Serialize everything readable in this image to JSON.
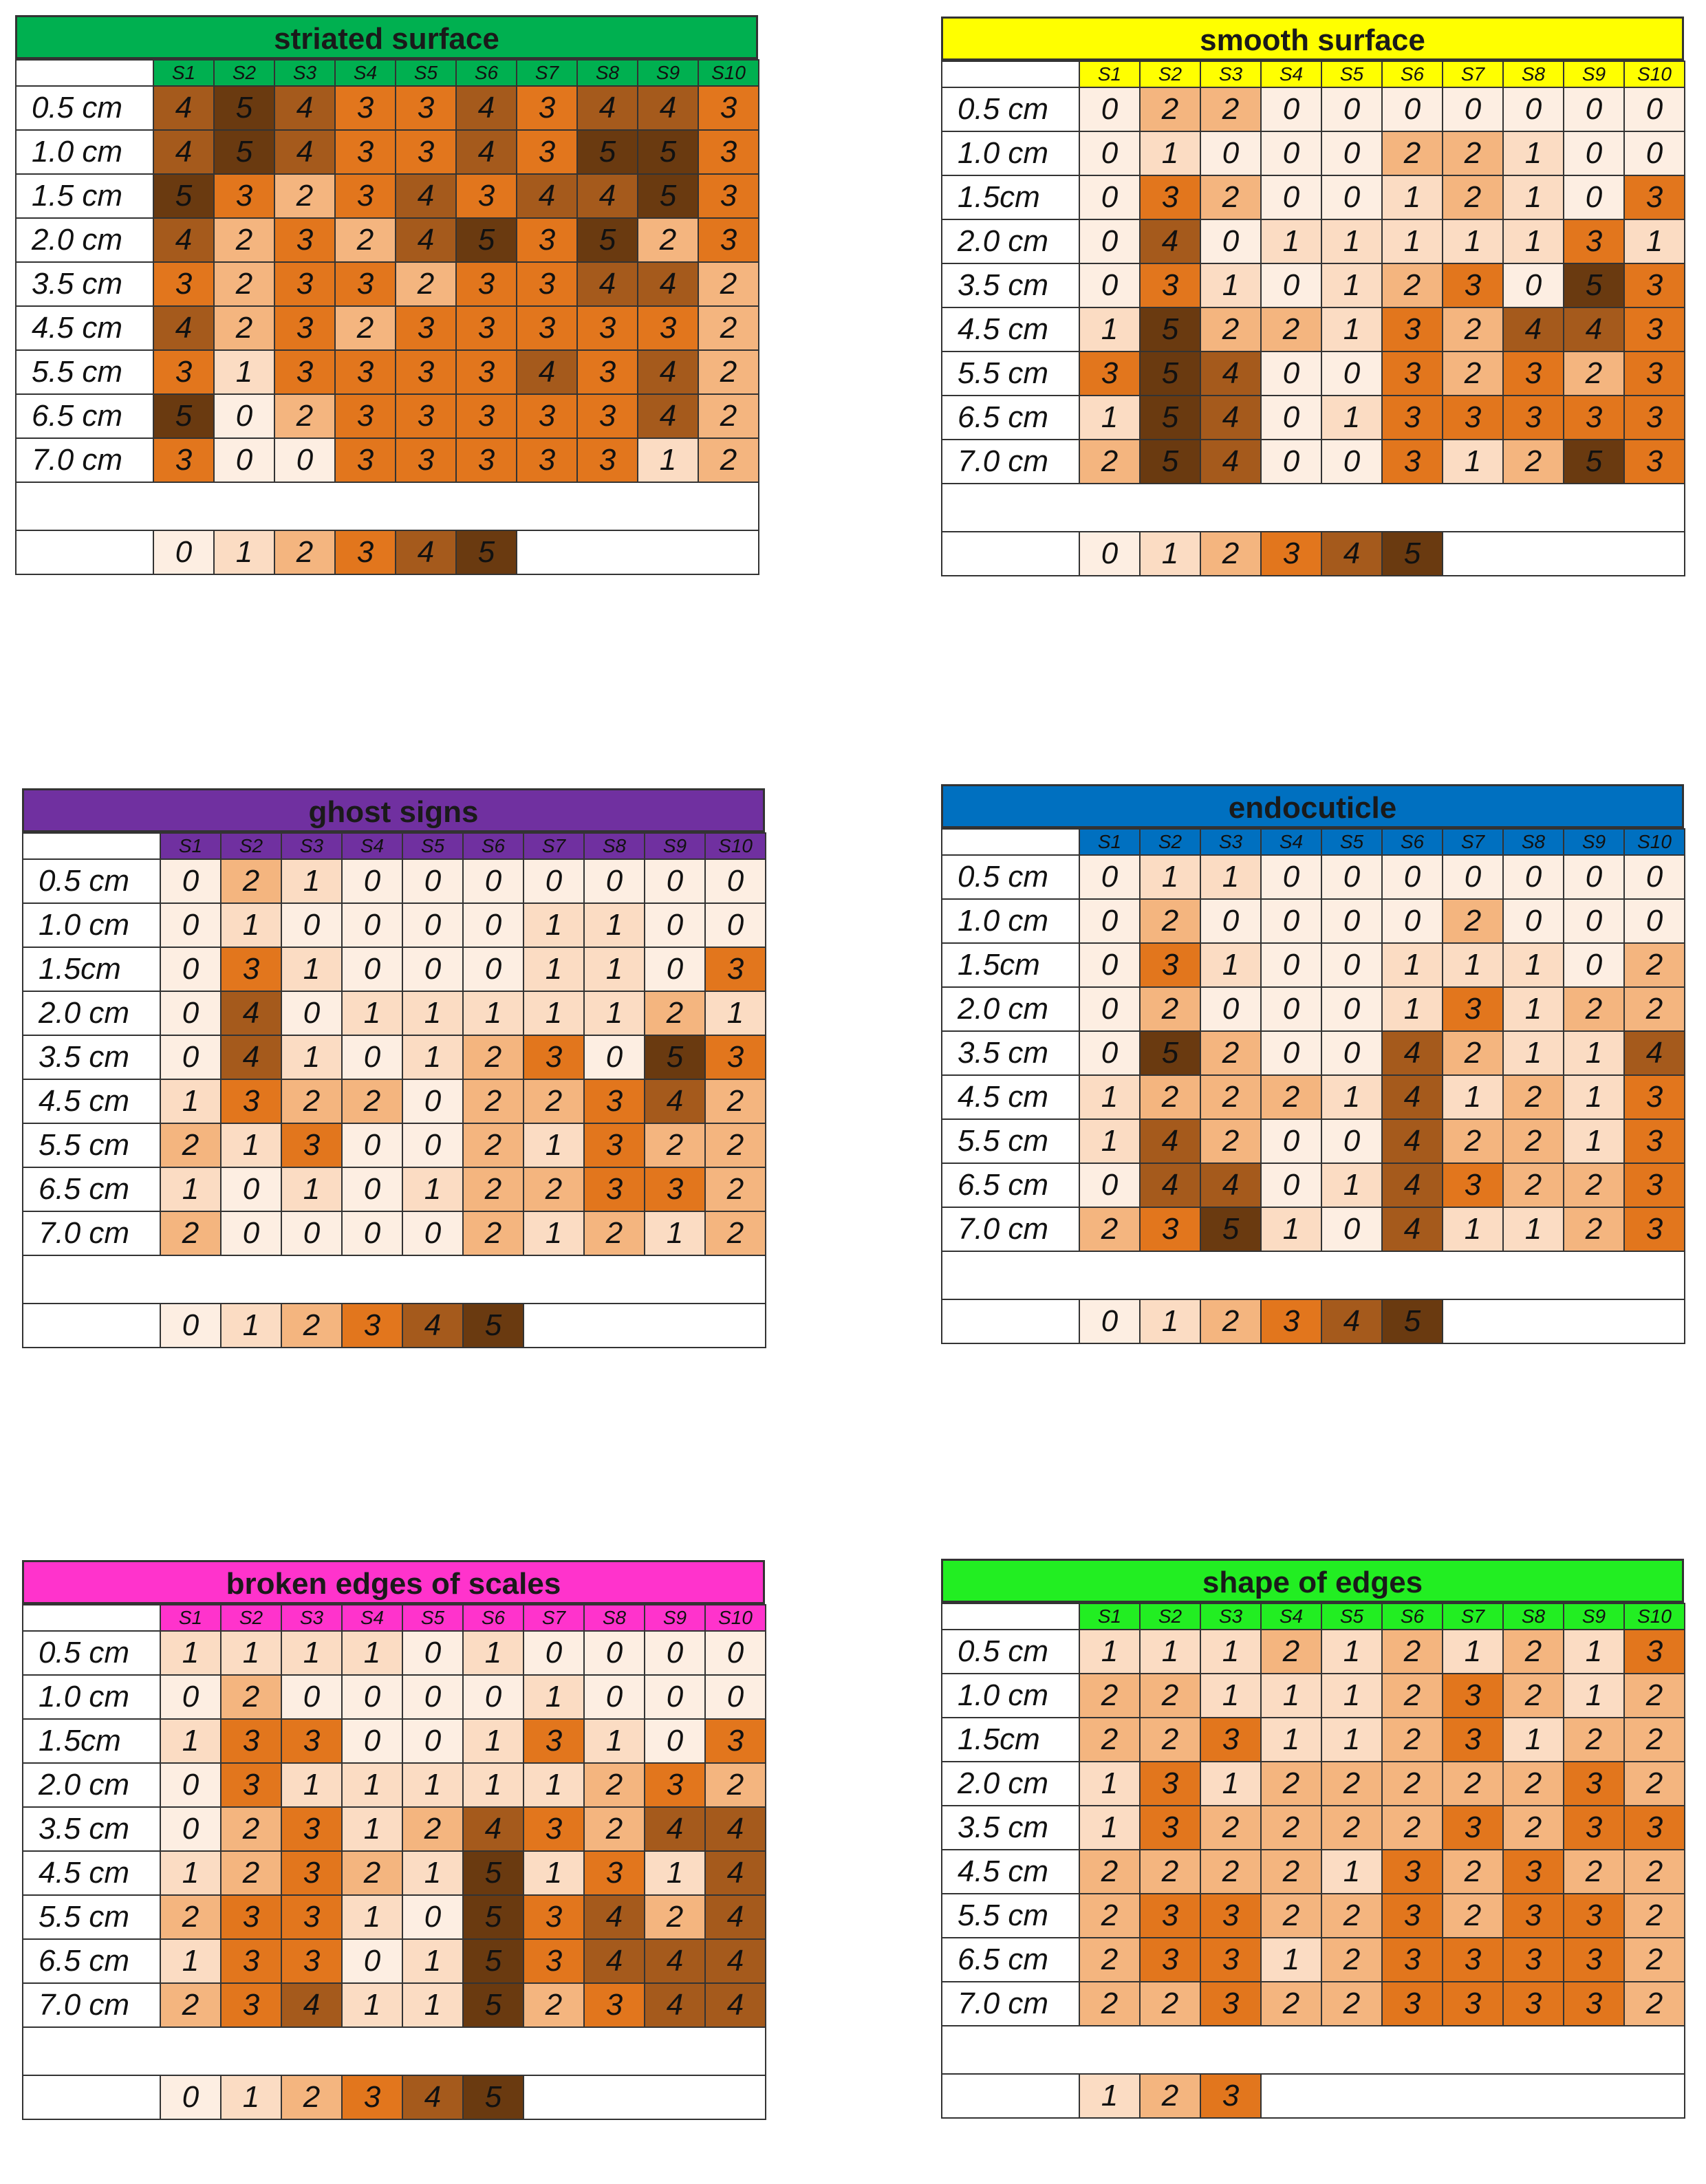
{
  "scale_colors": {
    "0": "#fdeee2",
    "1": "#fbdcc3",
    "2": "#f4b57f",
    "3": "#e2761d",
    "4": "#a55a1c",
    "5": "#6a3a10"
  },
  "chart_data": [
    {
      "type": "heatmap",
      "title": "striated surface",
      "title_color": "#00b050",
      "columns": [
        "S1",
        "S2",
        "S3",
        "S4",
        "S5",
        "S6",
        "S7",
        "S8",
        "S9",
        "S10"
      ],
      "rows": [
        "0.5 cm",
        "1.0 cm",
        "1.5 cm",
        "2.0 cm",
        "3.5 cm",
        "4.5 cm",
        "5.5 cm",
        "6.5 cm",
        "7.0 cm"
      ],
      "values": [
        [
          4,
          5,
          4,
          3,
          3,
          4,
          3,
          4,
          4,
          3
        ],
        [
          4,
          5,
          4,
          3,
          3,
          4,
          3,
          5,
          5,
          3
        ],
        [
          5,
          3,
          2,
          3,
          4,
          3,
          4,
          4,
          5,
          3
        ],
        [
          4,
          2,
          3,
          2,
          4,
          5,
          3,
          5,
          2,
          3
        ],
        [
          3,
          2,
          3,
          3,
          2,
          3,
          3,
          4,
          4,
          2
        ],
        [
          4,
          2,
          3,
          2,
          3,
          3,
          3,
          3,
          3,
          2
        ],
        [
          3,
          1,
          3,
          3,
          3,
          3,
          4,
          3,
          4,
          2
        ],
        [
          5,
          0,
          2,
          3,
          3,
          3,
          3,
          3,
          4,
          2
        ],
        [
          3,
          0,
          0,
          3,
          3,
          3,
          3,
          3,
          1,
          2
        ]
      ],
      "legend": [
        0,
        1,
        2,
        3,
        4,
        5
      ]
    },
    {
      "type": "heatmap",
      "title": "smooth surface",
      "title_color": "#ffff00",
      "columns": [
        "S1",
        "S2",
        "S3",
        "S4",
        "S5",
        "S6",
        "S7",
        "S8",
        "S9",
        "S10"
      ],
      "rows": [
        "0.5 cm",
        "1.0 cm",
        "1.5cm",
        "2.0 cm",
        "3.5 cm",
        "4.5 cm",
        "5.5 cm",
        "6.5 cm",
        "7.0 cm"
      ],
      "values": [
        [
          0,
          2,
          2,
          0,
          0,
          0,
          0,
          0,
          0,
          0
        ],
        [
          0,
          1,
          0,
          0,
          0,
          2,
          2,
          1,
          0,
          0
        ],
        [
          0,
          3,
          2,
          0,
          0,
          1,
          2,
          1,
          0,
          3
        ],
        [
          0,
          4,
          0,
          1,
          1,
          1,
          1,
          1,
          3,
          1
        ],
        [
          0,
          3,
          1,
          0,
          1,
          2,
          3,
          0,
          5,
          3
        ],
        [
          1,
          5,
          2,
          2,
          1,
          3,
          2,
          4,
          4,
          3
        ],
        [
          3,
          5,
          4,
          0,
          0,
          3,
          2,
          3,
          2,
          3
        ],
        [
          1,
          5,
          4,
          0,
          1,
          3,
          3,
          3,
          3,
          3
        ],
        [
          2,
          5,
          4,
          0,
          0,
          3,
          1,
          2,
          5,
          3
        ]
      ],
      "legend": [
        0,
        1,
        2,
        3,
        4,
        5
      ]
    },
    {
      "type": "heatmap",
      "title": "ghost signs",
      "title_color": "#7030a0",
      "columns": [
        "S1",
        "S2",
        "S3",
        "S4",
        "S5",
        "S6",
        "S7",
        "S8",
        "S9",
        "S10"
      ],
      "rows": [
        "0.5 cm",
        "1.0 cm",
        "1.5cm",
        "2.0 cm",
        "3.5 cm",
        "4.5 cm",
        "5.5 cm",
        "6.5 cm",
        "7.0 cm"
      ],
      "values": [
        [
          0,
          2,
          1,
          0,
          0,
          0,
          0,
          0,
          0,
          0
        ],
        [
          0,
          1,
          0,
          0,
          0,
          0,
          1,
          1,
          0,
          0
        ],
        [
          0,
          3,
          1,
          0,
          0,
          0,
          1,
          1,
          0,
          3
        ],
        [
          0,
          4,
          0,
          1,
          1,
          1,
          1,
          1,
          2,
          1
        ],
        [
          0,
          4,
          1,
          0,
          1,
          2,
          3,
          0,
          5,
          3
        ],
        [
          1,
          3,
          2,
          2,
          0,
          2,
          2,
          3,
          4,
          2
        ],
        [
          2,
          1,
          3,
          0,
          0,
          2,
          1,
          3,
          2,
          2
        ],
        [
          1,
          0,
          1,
          0,
          1,
          2,
          2,
          3,
          3,
          2
        ],
        [
          2,
          0,
          0,
          0,
          0,
          2,
          1,
          2,
          1,
          2
        ]
      ],
      "legend": [
        0,
        1,
        2,
        3,
        4,
        5
      ]
    },
    {
      "type": "heatmap",
      "title": "endocuticle",
      "title_color": "#0070c0",
      "columns": [
        "S1",
        "S2",
        "S3",
        "S4",
        "S5",
        "S6",
        "S7",
        "S8",
        "S9",
        "S10"
      ],
      "rows": [
        "0.5 cm",
        "1.0 cm",
        "1.5cm",
        "2.0 cm",
        "3.5 cm",
        "4.5 cm",
        "5.5 cm",
        "6.5 cm",
        "7.0 cm"
      ],
      "values": [
        [
          0,
          1,
          1,
          0,
          0,
          0,
          0,
          0,
          0,
          0
        ],
        [
          0,
          2,
          0,
          0,
          0,
          0,
          2,
          0,
          0,
          0
        ],
        [
          0,
          3,
          1,
          0,
          0,
          1,
          1,
          1,
          0,
          2
        ],
        [
          0,
          2,
          0,
          0,
          0,
          1,
          3,
          1,
          2,
          2
        ],
        [
          0,
          5,
          2,
          0,
          0,
          4,
          2,
          1,
          1,
          4
        ],
        [
          1,
          2,
          2,
          2,
          1,
          4,
          1,
          2,
          1,
          3
        ],
        [
          1,
          4,
          2,
          0,
          0,
          4,
          2,
          2,
          1,
          3
        ],
        [
          0,
          4,
          4,
          0,
          1,
          4,
          3,
          2,
          2,
          3
        ],
        [
          2,
          3,
          5,
          1,
          0,
          4,
          1,
          1,
          2,
          3
        ]
      ],
      "legend": [
        0,
        1,
        2,
        3,
        4,
        5
      ]
    },
    {
      "type": "heatmap",
      "title": "broken edges of scales",
      "title_color": "#ff33cc",
      "columns": [
        "S1",
        "S2",
        "S3",
        "S4",
        "S5",
        "S6",
        "S7",
        "S8",
        "S9",
        "S10"
      ],
      "rows": [
        "0.5 cm",
        "1.0 cm",
        "1.5cm",
        "2.0 cm",
        "3.5 cm",
        "4.5 cm",
        "5.5 cm",
        "6.5 cm",
        "7.0 cm"
      ],
      "values": [
        [
          1,
          1,
          1,
          1,
          0,
          1,
          0,
          0,
          0,
          0
        ],
        [
          0,
          2,
          0,
          0,
          0,
          0,
          1,
          0,
          0,
          0
        ],
        [
          1,
          3,
          3,
          0,
          0,
          1,
          3,
          1,
          0,
          3
        ],
        [
          0,
          3,
          1,
          1,
          1,
          1,
          1,
          2,
          3,
          2
        ],
        [
          0,
          2,
          3,
          1,
          2,
          4,
          3,
          2,
          4,
          4
        ],
        [
          1,
          2,
          3,
          2,
          1,
          5,
          1,
          3,
          1,
          4
        ],
        [
          2,
          3,
          3,
          1,
          0,
          5,
          3,
          4,
          2,
          4
        ],
        [
          1,
          3,
          3,
          0,
          1,
          5,
          3,
          4,
          4,
          4
        ],
        [
          2,
          3,
          4,
          1,
          1,
          5,
          2,
          3,
          4,
          4
        ]
      ],
      "legend": [
        0,
        1,
        2,
        3,
        4,
        5
      ]
    },
    {
      "type": "heatmap",
      "title": "shape of edges",
      "title_color": "#22ee22",
      "columns": [
        "S1",
        "S2",
        "S3",
        "S4",
        "S5",
        "S6",
        "S7",
        "S8",
        "S9",
        "S10"
      ],
      "rows": [
        "0.5 cm",
        "1.0 cm",
        "1.5cm",
        "2.0 cm",
        "3.5 cm",
        "4.5 cm",
        "5.5 cm",
        "6.5 cm",
        "7.0 cm"
      ],
      "values": [
        [
          1,
          1,
          1,
          2,
          1,
          2,
          1,
          2,
          1,
          3
        ],
        [
          2,
          2,
          1,
          1,
          1,
          2,
          3,
          2,
          1,
          2
        ],
        [
          2,
          2,
          3,
          1,
          1,
          2,
          3,
          1,
          2,
          2
        ],
        [
          1,
          3,
          1,
          2,
          2,
          2,
          2,
          2,
          3,
          2
        ],
        [
          1,
          3,
          2,
          2,
          2,
          2,
          3,
          2,
          3,
          3
        ],
        [
          2,
          2,
          2,
          2,
          1,
          3,
          2,
          3,
          2,
          2
        ],
        [
          2,
          3,
          3,
          2,
          2,
          3,
          2,
          3,
          3,
          2
        ],
        [
          2,
          3,
          3,
          1,
          2,
          3,
          3,
          3,
          3,
          2
        ],
        [
          2,
          2,
          3,
          2,
          2,
          3,
          3,
          3,
          3,
          2
        ]
      ],
      "legend": [
        1,
        2,
        3
      ]
    }
  ]
}
